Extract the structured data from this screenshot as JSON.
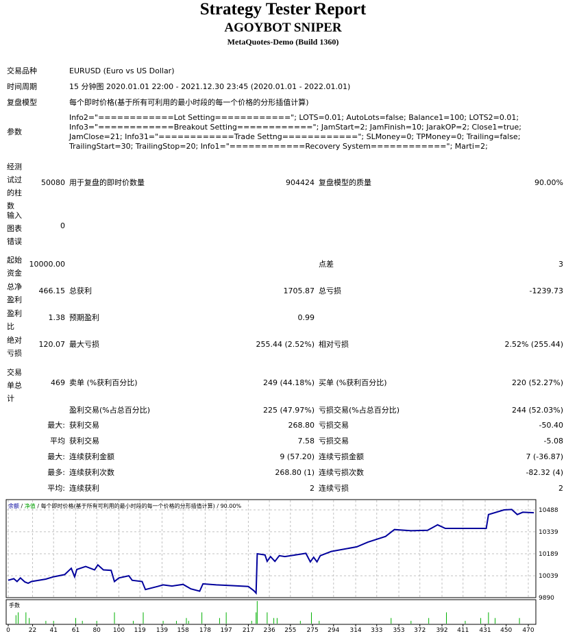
{
  "header": {
    "title": "Strategy Tester Report",
    "subtitle": "AGOYBOT SNIPER",
    "server": "MetaQuotes-Demo (Build 1360)"
  },
  "info": {
    "symbol_label": "交易品种",
    "symbol_value": "EURUSD (Euro vs US Dollar)",
    "period_label": "时间周期",
    "period_value": "15 分钟图 2020.01.01 22:00 - 2021.12.30 23:45 (2020.01.01 - 2022.01.01)",
    "model_label": "复盘模型",
    "model_value": "每个即时价格(基于所有可利用的最小时段的每一个价格的分形插值计算)",
    "params_label": "参数",
    "params_lines": [
      "Info2=\"============Lot Setting============\"; LOTS=0.01; AutoLots=false; Balance1=100; LOTS2=0.01;",
      "Info3=\"============Breakout Setting============\"; JamStart=2; JamFinish=10; JarakOP=2; Close1=true;",
      "JamClose=21; Info31=\"============Trade Settng============\"; SLMoney=0; TPMoney=0; Trailing=false;",
      "TrailingStart=30; TrailingStop=20; Info1=\"============Recovery System============\"; Marti=2;"
    ]
  },
  "stats": {
    "bars_label": "经测试过的柱数",
    "bars_value": "50080",
    "ticks_label": "用于复盘的即时价数量",
    "ticks_value": "904424",
    "quality_label": "复盘模型的质量",
    "quality_value": "90.00%",
    "errors_label": "输入图表错误",
    "errors_value": "0",
    "deposit_label": "起始资金",
    "deposit_value": "10000.00",
    "spread_label": "点差",
    "spread_value": "3",
    "net_label": "总净盈利",
    "net_value": "466.15",
    "gross_profit_label": "总获利",
    "gross_profit_value": "1705.87",
    "gross_loss_label": "总亏损",
    "gross_loss_value": "-1239.73",
    "pf_label": "盈利比",
    "pf_value": "1.38",
    "payoff_label": "预期盈利",
    "payoff_value": "0.99",
    "abs_dd_label": "绝对亏损",
    "abs_dd_value": "120.07",
    "max_dd_label": "最大亏损",
    "max_dd_value": "255.44 (2.52%)",
    "rel_dd_label": "相对亏损",
    "rel_dd_value": "2.52% (255.44)",
    "trades_label": "交易单总计",
    "trades_value": "469",
    "short_label": "卖单 (%获利百分比)",
    "short_value": "249 (44.18%)",
    "long_label": "买单 (%获利百分比)",
    "long_value": "220 (52.27%)",
    "win_label": "盈利交易(%占总百分比)",
    "win_value": "225 (47.97%)",
    "loss_label": "亏损交易(%占总百分比)",
    "loss_value": "244 (52.03%)",
    "rows": [
      {
        "prefix": "最大:",
        "l2": "获利交易",
        "v2": "268.80",
        "l3": "亏损交易",
        "v3": "-50.40"
      },
      {
        "prefix": "平均",
        "l2": "获利交易",
        "v2": "7.58",
        "l3": "亏损交易",
        "v3": "-5.08"
      },
      {
        "prefix": "最大:",
        "l2": "连续获利金额",
        "v2": "9 (57.20)",
        "l3": "连续亏损金额",
        "v3": "7 (-36.87)"
      },
      {
        "prefix": "最多:",
        "l2": "连续获利次数",
        "v2": "268.80 (1)",
        "l3": "连续亏损次数",
        "v3": "-82.32 (4)"
      },
      {
        "prefix": "平均:",
        "l2": "连续获利",
        "v2": "2",
        "l3": "连续亏损",
        "v3": "2"
      }
    ]
  },
  "chart_data": {
    "type": "line",
    "legend": {
      "balance": "余额",
      "sep1": " / ",
      "equity": "净值",
      "rest": " / 每个即时价格(基于所有可利用的最小时段的每一个价格的分形插值计算) / 90.00%"
    },
    "colors": {
      "balance": "#00009c",
      "equity": "#00a000",
      "volume": "#00b000",
      "grid": "#c0c0c0"
    },
    "ylim": [
      9890,
      10488
    ],
    "yticks": [
      "10488",
      "10339",
      "10189",
      "10039",
      "9890"
    ],
    "xlim": [
      0,
      475
    ],
    "xticks": [
      "0",
      "22",
      "41",
      "61",
      "80",
      "100",
      "119",
      "139",
      "158",
      "178",
      "197",
      "217",
      "236",
      "255",
      "275",
      "294",
      "314",
      "333",
      "353",
      "372",
      "392",
      "411",
      "431",
      "450",
      "470"
    ],
    "volume_label": "手数",
    "balance": [
      [
        0,
        10008
      ],
      [
        5,
        10019
      ],
      [
        8,
        10000
      ],
      [
        11,
        10024
      ],
      [
        15,
        9997
      ],
      [
        18,
        9988
      ],
      [
        21,
        10000
      ],
      [
        34,
        10016
      ],
      [
        41,
        10032
      ],
      [
        51,
        10047
      ],
      [
        57,
        10090
      ],
      [
        60,
        10032
      ],
      [
        62,
        10082
      ],
      [
        70,
        10102
      ],
      [
        78,
        10079
      ],
      [
        81,
        10113
      ],
      [
        86,
        10079
      ],
      [
        93,
        10076
      ],
      [
        96,
        10000
      ],
      [
        100,
        10024
      ],
      [
        109,
        10039
      ],
      [
        112,
        10008
      ],
      [
        121,
        10000
      ],
      [
        124,
        9945
      ],
      [
        135,
        9966
      ],
      [
        140,
        9977
      ],
      [
        148,
        9969
      ],
      [
        158,
        9980
      ],
      [
        165,
        9950
      ],
      [
        173,
        9934
      ],
      [
        176,
        9984
      ],
      [
        188,
        9977
      ],
      [
        201,
        9972
      ],
      [
        217,
        9966
      ],
      [
        222,
        9937
      ],
      [
        224,
        9921
      ],
      [
        225,
        10189
      ],
      [
        232,
        10181
      ],
      [
        234,
        10137
      ],
      [
        237,
        10170
      ],
      [
        241,
        10137
      ],
      [
        245,
        10176
      ],
      [
        250,
        10170
      ],
      [
        269,
        10192
      ],
      [
        273,
        10134
      ],
      [
        276,
        10165
      ],
      [
        279,
        10134
      ],
      [
        282,
        10176
      ],
      [
        292,
        10205
      ],
      [
        315,
        10236
      ],
      [
        325,
        10268
      ],
      [
        341,
        10307
      ],
      [
        349,
        10354
      ],
      [
        364,
        10346
      ],
      [
        379,
        10349
      ],
      [
        388,
        10386
      ],
      [
        395,
        10362
      ],
      [
        432,
        10362
      ],
      [
        434,
        10456
      ],
      [
        448,
        10488
      ],
      [
        455,
        10491
      ],
      [
        460,
        10456
      ],
      [
        465,
        10472
      ],
      [
        475,
        10469
      ]
    ],
    "volume": [
      [
        7,
        0.03
      ],
      [
        9,
        0.04
      ],
      [
        16,
        0.04
      ],
      [
        19,
        0.02
      ],
      [
        34,
        0.01
      ],
      [
        41,
        0.01
      ],
      [
        61,
        0.02
      ],
      [
        67,
        0.01
      ],
      [
        80,
        0.01
      ],
      [
        96,
        0.04
      ],
      [
        113,
        0.01
      ],
      [
        122,
        0.04
      ],
      [
        140,
        0.01
      ],
      [
        152,
        0.01
      ],
      [
        161,
        0.02
      ],
      [
        163,
        0.01
      ],
      [
        175,
        0.04
      ],
      [
        191,
        0.02
      ],
      [
        197,
        0.04
      ],
      [
        220,
        0.01
      ],
      [
        224,
        0.04
      ],
      [
        225,
        0.08
      ],
      [
        234,
        0.04
      ],
      [
        240,
        0.02
      ],
      [
        243,
        0.02
      ],
      [
        264,
        0.01
      ],
      [
        274,
        0.04
      ],
      [
        281,
        0.01
      ],
      [
        346,
        0.02
      ],
      [
        364,
        0.01
      ],
      [
        380,
        0.02
      ],
      [
        396,
        0.04
      ],
      [
        413,
        0.01
      ],
      [
        427,
        0.02
      ],
      [
        434,
        0.04
      ],
      [
        440,
        0.02
      ],
      [
        462,
        0.02
      ]
    ]
  }
}
